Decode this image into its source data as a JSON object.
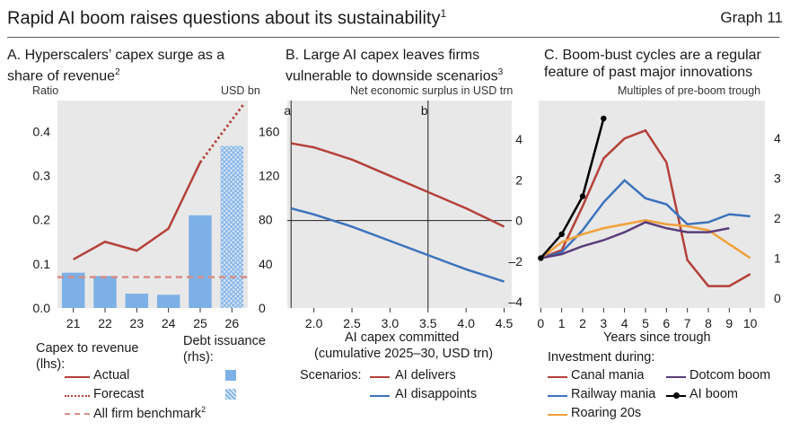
{
  "header": {
    "title": "Rapid AI boom raises questions about its sustainability",
    "title_note": "1",
    "graph_label": "Graph 11"
  },
  "colors": {
    "actual": "#b5413a",
    "bar": "#7db0e6",
    "benchmark": "#d88d86",
    "ai_delivers": "#b5413a",
    "ai_disappoints": "#3c73bd",
    "canal": "#b5413a",
    "railway": "#3c73bd",
    "roaring": "#f0a13b",
    "dotcom": "#5a3d7a",
    "ai_boom": "#000000",
    "panel_bg": "#e8e8e8"
  },
  "chart_data": [
    {
      "id": "A",
      "type": "bar",
      "title_line1": "A. Hyperscalers’ capex surge as a",
      "title_line2": "share of revenue",
      "title_note": "2",
      "ylabel_left": "Ratio",
      "ylabel_right": "USD bn",
      "categories": [
        "21",
        "22",
        "23",
        "24",
        "25",
        "26"
      ],
      "y_left_ticks": [
        "0.0",
        "0.1",
        "0.2",
        "0.3",
        "0.4"
      ],
      "y_right_ticks": [
        "0",
        "40",
        "80",
        "120",
        "160"
      ],
      "ylim_left": [
        0,
        0.47
      ],
      "ylim_right": [
        0,
        188
      ],
      "debt_issuance": [
        32,
        29,
        13,
        12,
        84,
        147
      ],
      "debt_issuance_forecast_index": 5,
      "capex_actual": [
        0.11,
        0.15,
        0.13,
        0.18,
        0.33
      ],
      "capex_forecast": [
        0.33,
        0.46
      ],
      "benchmark": 0.07,
      "legend": {
        "capex_header_line1": "Capex to revenue",
        "capex_header_line2": "(lhs):",
        "debt_header_line1": "Debt issuance",
        "debt_header_line2": "(rhs):",
        "actual": "Actual",
        "forecast": "Forecast",
        "benchmark": "All firm benchmark",
        "benchmark_note": "2"
      }
    },
    {
      "id": "B",
      "type": "line",
      "title_line1": "B. Large AI capex leaves firms",
      "title_line2": "vulnerable to downside scenarios",
      "title_note": "3",
      "ylabel": "Net economic surplus in USD trn",
      "xlabel_line1": "AI capex committed",
      "xlabel_line2": "(cumulative 2025–30, USD trn)",
      "x_ticks": [
        "2.0",
        "2.5",
        "3.0",
        "3.5",
        "4.0",
        "4.5"
      ],
      "xlim": [
        1.65,
        4.6
      ],
      "y_ticks": [
        "–4",
        "–2",
        "0",
        "2",
        "4"
      ],
      "ylim": [
        -4.3,
        5.9
      ],
      "markers": [
        {
          "label": "a",
          "x": 1.7
        },
        {
          "label": "b",
          "x": 3.5
        }
      ],
      "scenarios_label": "Scenarios:",
      "series": [
        {
          "name": "AI delivers",
          "x": [
            1.7,
            2.0,
            2.5,
            3.0,
            3.5,
            4.0,
            4.5
          ],
          "y": [
            3.8,
            3.6,
            3.0,
            2.2,
            1.4,
            0.6,
            -0.3
          ]
        },
        {
          "name": "AI disappoints",
          "x": [
            1.7,
            2.0,
            2.5,
            3.0,
            3.5,
            4.0,
            4.5
          ],
          "y": [
            0.6,
            0.3,
            -0.3,
            -1.0,
            -1.7,
            -2.4,
            -3.0
          ]
        }
      ]
    },
    {
      "id": "C",
      "type": "line",
      "title_line1": "C. Boom-bust cycles are a regular",
      "title_line2": "feature of past major innovations",
      "ylabel": "Multiples of pre-boom trough",
      "xlabel": "Years since trough",
      "legend_header": "Investment during:",
      "x_ticks": [
        "0",
        "1",
        "2",
        "3",
        "4",
        "5",
        "6",
        "7",
        "8",
        "9",
        "10"
      ],
      "xlim": [
        -0.1,
        10.7
      ],
      "y_ticks": [
        "0",
        "1",
        "2",
        "3",
        "4"
      ],
      "ylim": [
        -0.25,
        4.95
      ],
      "series": [
        {
          "name": "Canal mania",
          "x": [
            0,
            1,
            2,
            3,
            4,
            5,
            6,
            7,
            8,
            9,
            10
          ],
          "y": [
            1.0,
            1.2,
            2.3,
            3.5,
            4.0,
            4.2,
            3.4,
            0.95,
            0.3,
            0.3,
            0.6
          ]
        },
        {
          "name": "Railway mania",
          "x": [
            0,
            1,
            2,
            3,
            4,
            5,
            6,
            7,
            8,
            9,
            10
          ],
          "y": [
            1.0,
            1.15,
            1.7,
            2.4,
            2.95,
            2.5,
            2.35,
            1.85,
            1.9,
            2.1,
            2.05
          ]
        },
        {
          "name": "Roaring 20s",
          "x": [
            0,
            1,
            2,
            3,
            4,
            5,
            6,
            7,
            8,
            9,
            10
          ],
          "y": [
            1.0,
            1.4,
            1.6,
            1.75,
            1.85,
            1.95,
            1.85,
            1.8,
            1.7,
            1.35,
            1.0
          ]
        },
        {
          "name": "Dotcom boom",
          "x": [
            0,
            1,
            2,
            3,
            4,
            5,
            6,
            7,
            8,
            9
          ],
          "y": [
            1.0,
            1.1,
            1.3,
            1.45,
            1.65,
            1.9,
            1.75,
            1.65,
            1.65,
            1.75
          ]
        },
        {
          "name": "AI boom",
          "x": [
            0,
            1,
            2,
            3
          ],
          "y": [
            1.0,
            1.6,
            2.55,
            4.5
          ],
          "markers": true
        }
      ]
    }
  ]
}
